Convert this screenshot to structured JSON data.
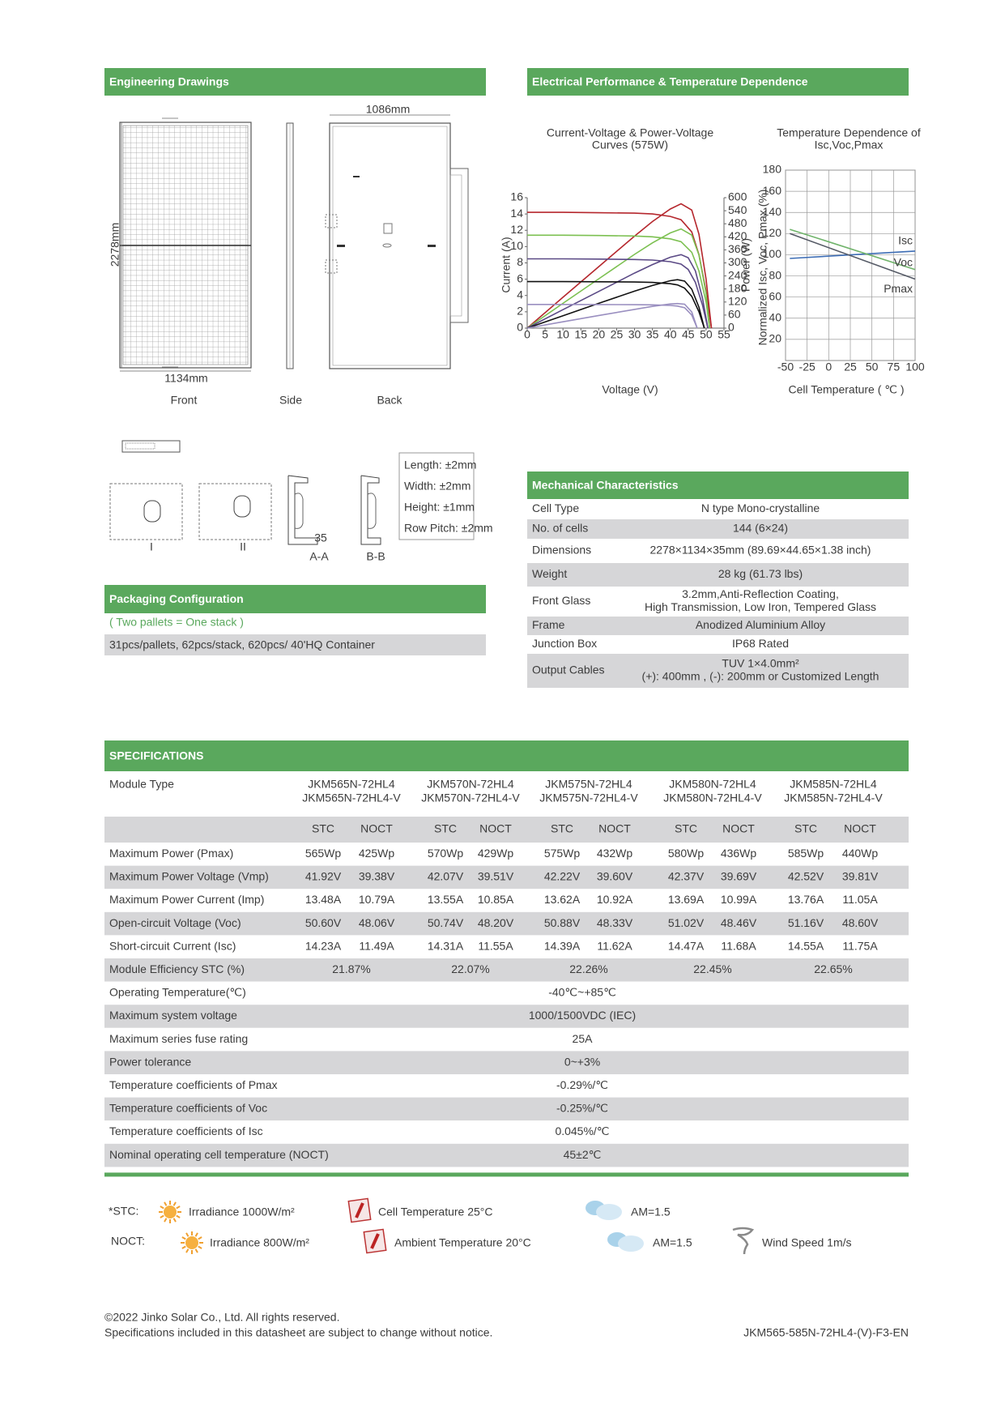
{
  "engineering_drawings": {
    "title": "Engineering Drawings",
    "back_width": "1086mm",
    "front_width": "1134mm",
    "length": "2278mm",
    "views": [
      "Front",
      "Side",
      "Back"
    ],
    "sections": [
      "I",
      "II"
    ],
    "profiles": [
      "A-A",
      "B-B"
    ],
    "profile_height": "35",
    "tolerances": [
      "Length: ±2mm",
      "Width: ±2mm",
      "Height: ±1mm",
      "Row Pitch: ±2mm"
    ]
  },
  "electrical": {
    "title": "Electrical Performance & Temperature Dependence",
    "iv_chart": {
      "type": "line",
      "title": [
        "Current-Voltage & Power-Voltage",
        "Curves (575W)"
      ],
      "x_label": "Voltage (V)",
      "y_label": "Current (A)",
      "y2_label": "Power (W)",
      "xlim": [
        0,
        55
      ],
      "xticks": [
        0,
        5,
        10,
        15,
        20,
        25,
        30,
        35,
        40,
        45,
        50,
        55
      ],
      "ylim": [
        0,
        16
      ],
      "yticks": [
        0,
        2,
        4,
        6,
        8,
        10,
        12,
        14,
        16
      ],
      "y2lim": [
        0,
        600
      ],
      "y2ticks": [
        0,
        60,
        120,
        180,
        240,
        300,
        360,
        420,
        480,
        540,
        600
      ],
      "series": [
        {
          "color": "#b5272d",
          "x": [
            0,
            10,
            20,
            30,
            35,
            40,
            43,
            46,
            48,
            50,
            51.5
          ],
          "current": [
            14.2,
            14.2,
            14.15,
            14.1,
            14.0,
            13.7,
            13.3,
            11.8,
            9.0,
            4.5,
            0
          ],
          "power": [
            0,
            142,
            283,
            423,
            490,
            548,
            572,
            543,
            432,
            225,
            0
          ]
        },
        {
          "color": "#7cc051",
          "x": [
            0,
            10,
            20,
            30,
            35,
            40,
            43,
            46,
            48,
            50,
            51
          ],
          "current": [
            11.4,
            11.4,
            11.36,
            11.3,
            11.2,
            10.95,
            10.6,
            9.3,
            7.0,
            3.2,
            0
          ],
          "power": [
            0,
            114,
            227,
            339,
            392,
            438,
            456,
            428,
            336,
            160,
            0
          ]
        },
        {
          "color": "#5b4a86",
          "x": [
            0,
            10,
            20,
            30,
            35,
            40,
            43,
            45,
            47,
            49,
            50.5
          ],
          "current": [
            8.5,
            8.5,
            8.47,
            8.42,
            8.35,
            8.15,
            7.85,
            7.2,
            5.6,
            2.8,
            0
          ],
          "power": [
            0,
            85,
            169,
            253,
            292,
            326,
            338,
            324,
            263,
            137,
            0
          ]
        },
        {
          "color": "#111111",
          "x": [
            0,
            10,
            20,
            30,
            35,
            40,
            42,
            44,
            46,
            48,
            49.5
          ],
          "current": [
            5.7,
            5.7,
            5.68,
            5.65,
            5.6,
            5.45,
            5.3,
            4.9,
            3.9,
            2.0,
            0
          ],
          "power": [
            0,
            57,
            114,
            170,
            196,
            218,
            223,
            216,
            179,
            96,
            0
          ]
        },
        {
          "color": "#9a8fc0",
          "x": [
            0,
            10,
            20,
            30,
            35,
            40,
            42,
            44,
            46,
            47.5
          ],
          "current": [
            2.9,
            2.9,
            2.89,
            2.87,
            2.85,
            2.78,
            2.7,
            2.5,
            1.6,
            0
          ],
          "power": [
            0,
            29,
            58,
            86,
            100,
            111,
            113,
            110,
            74,
            0
          ]
        }
      ]
    },
    "temp_chart": {
      "type": "line",
      "title": [
        "Temperature Dependence of",
        "Isc,Voc,Pmax"
      ],
      "x_label": "Cell Temperature ( ℃ )",
      "y_label": "Normalized Isc, Voc, Pmax (%)",
      "xlim": [
        -50,
        100
      ],
      "xticks": [
        -50,
        -25,
        0,
        25,
        50,
        75,
        100
      ],
      "ylim": [
        0,
        180
      ],
      "yticks": [
        20,
        40,
        60,
        80,
        100,
        120,
        140,
        160,
        180
      ],
      "grid": true,
      "series": [
        {
          "name": "Isc",
          "color": "#3d6db5",
          "x": [
            -45,
            100
          ],
          "values": [
            96.5,
            103.5
          ]
        },
        {
          "name": "Voc",
          "color": "#6fb36a",
          "x": [
            -45,
            100
          ],
          "values": [
            124,
            86
          ]
        },
        {
          "name": "Pmax",
          "color": "#555a66",
          "x": [
            -45,
            100
          ],
          "values": [
            120,
            77
          ]
        }
      ]
    }
  },
  "mechanical": {
    "title": "Mechanical Characteristics",
    "rows": [
      {
        "label": "Cell Type",
        "value": [
          "N type Mono-crystalline"
        ]
      },
      {
        "label": "No. of cells",
        "value": [
          "144 (6×24)"
        ]
      },
      {
        "label": "Dimensions",
        "value": [
          "2278×1134×35mm (89.69×44.65×1.38 inch)"
        ]
      },
      {
        "label": "Weight",
        "value": [
          "28 kg (61.73 lbs)"
        ]
      },
      {
        "label": "Front Glass",
        "value": [
          "3.2mm,Anti-Reflection Coating,",
          "High Transmission, Low Iron, Tempered Glass"
        ]
      },
      {
        "label": "Frame",
        "value": [
          "Anodized Aluminium Alloy"
        ]
      },
      {
        "label": "Junction Box",
        "value": [
          "IP68 Rated"
        ]
      },
      {
        "label": "Output Cables",
        "value": [
          "TUV 1×4.0mm²",
          "(+): 400mm , (-): 200mm or Customized Length"
        ]
      }
    ]
  },
  "packaging": {
    "title": "Packaging Configuration",
    "note": "( Two pallets = One stack )",
    "content": "31pcs/pallets, 62pcs/stack, 620pcs/ 40'HQ Container"
  },
  "specifications": {
    "title": "SPECIFICATIONS",
    "module_type_label": "Module Type",
    "models": [
      [
        "JKM565N-72HL4",
        "JKM565N-72HL4-V"
      ],
      [
        "JKM570N-72HL4",
        "JKM570N-72HL4-V"
      ],
      [
        "JKM575N-72HL4",
        "JKM575N-72HL4-V"
      ],
      [
        "JKM580N-72HL4",
        "JKM580N-72HL4-V"
      ],
      [
        "JKM585N-72HL4",
        "JKM585N-72HL4-V"
      ]
    ],
    "conditions": [
      "STC",
      "NOCT"
    ],
    "paired_rows": [
      {
        "label": "Maximum Power (Pmax)",
        "values": [
          "565Wp",
          "425Wp",
          "570Wp",
          "429Wp",
          "575Wp",
          "432Wp",
          "580Wp",
          "436Wp",
          "585Wp",
          "440Wp"
        ]
      },
      {
        "label": "Maximum Power Voltage (Vmp)",
        "values": [
          "41.92V",
          "39.38V",
          "42.07V",
          "39.51V",
          "42.22V",
          "39.60V",
          "42.37V",
          "39.69V",
          "42.52V",
          "39.81V"
        ]
      },
      {
        "label": "Maximum Power Current (Imp)",
        "values": [
          "13.48A",
          "10.79A",
          "13.55A",
          "10.85A",
          "13.62A",
          "10.92A",
          "13.69A",
          "10.99A",
          "13.76A",
          "11.05A"
        ]
      },
      {
        "label": "Open-circuit Voltage (Voc)",
        "values": [
          "50.60V",
          "48.06V",
          "50.74V",
          "48.20V",
          "50.88V",
          "48.33V",
          "51.02V",
          "48.46V",
          "51.16V",
          "48.60V"
        ]
      },
      {
        "label": "Short-circuit Current (Isc)",
        "values": [
          "14.23A",
          "11.49A",
          "14.31A",
          "11.55A",
          "14.39A",
          "11.62A",
          "14.47A",
          "11.68A",
          "14.55A",
          "11.75A"
        ]
      }
    ],
    "efficiency": {
      "label": "Module Efficiency STC (%)",
      "values": [
        "21.87%",
        "22.07%",
        "22.26%",
        "22.45%",
        "22.65%"
      ]
    },
    "single_rows": [
      {
        "label": "Operating Temperature(℃)",
        "value": "-40℃~+85℃"
      },
      {
        "label": "Maximum system voltage",
        "value": "1000/1500VDC (IEC)"
      },
      {
        "label": "Maximum series fuse rating",
        "value": "25A"
      },
      {
        "label": "Power tolerance",
        "value": "0~+3%"
      },
      {
        "label": "Temperature coefficients of Pmax",
        "value": "-0.29%/℃"
      },
      {
        "label": "Temperature coefficients of Voc",
        "value": "-0.25%/℃"
      },
      {
        "label": "Temperature coefficients of Isc",
        "value": "0.045%/℃"
      },
      {
        "label": "Nominal operating cell temperature  (NOCT)",
        "value": "45±2℃"
      }
    ]
  },
  "conditions_legend": {
    "stc": {
      "label": "*STC:",
      "irradiance": "Irradiance 1000W/m²",
      "temperature": "Cell Temperature 25°C",
      "air_mass": "AM=1.5"
    },
    "noct": {
      "label": "NOCT:",
      "irradiance": "Irradiance 800W/m²",
      "temperature": "Ambient Temperature 20°C",
      "air_mass": "AM=1.5",
      "wind": "Wind Speed 1m/s"
    }
  },
  "footer": {
    "copyright": "©2022 Jinko Solar Co., Ltd. All rights reserved.",
    "disclaimer": "Specifications included in this datasheet are subject to change without notice.",
    "document_code": "JKM565-585N-72HL4-(V)-F3-EN"
  }
}
